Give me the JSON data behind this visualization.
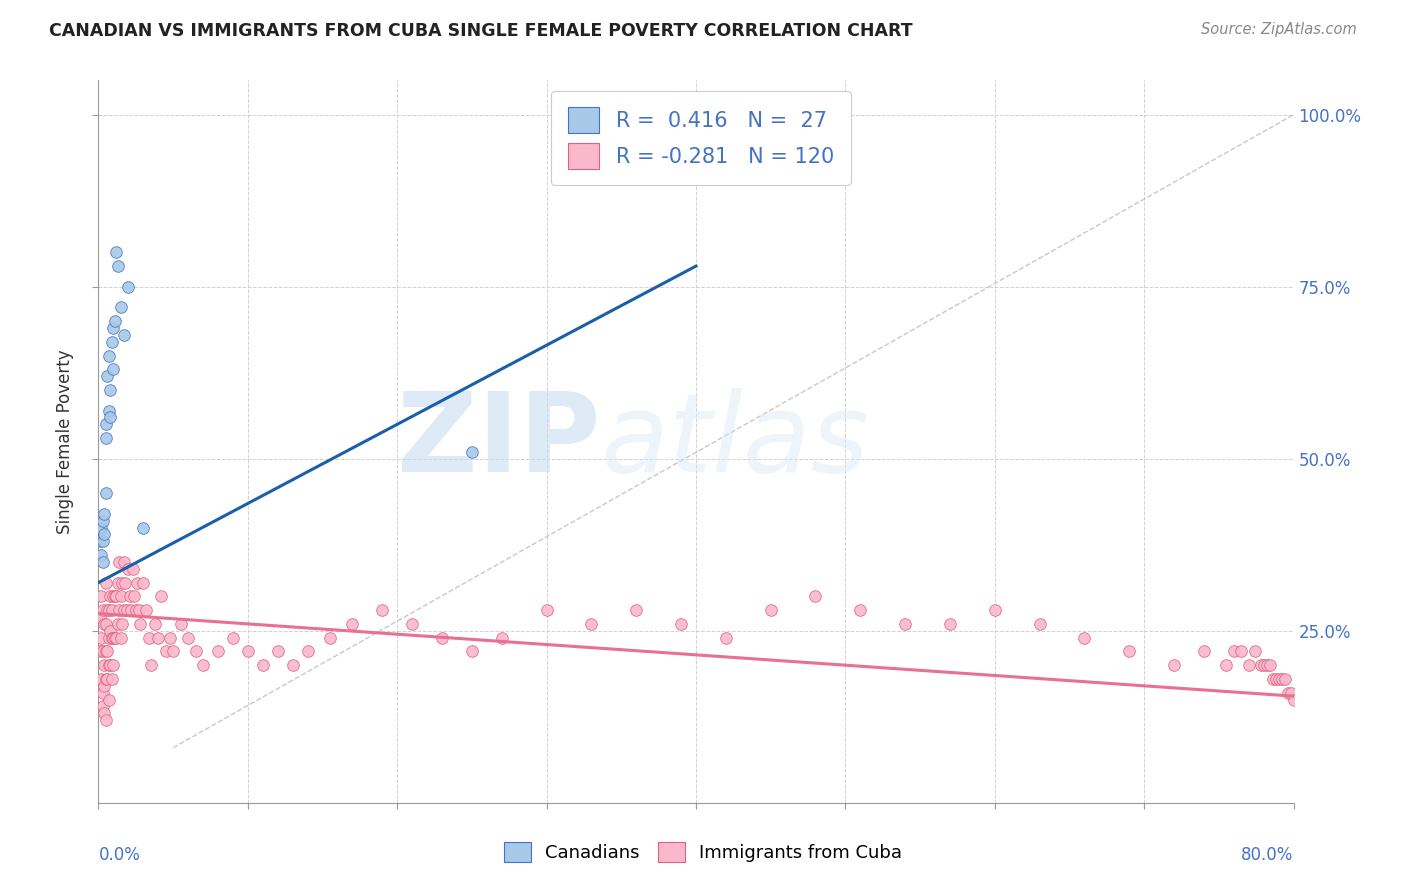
{
  "title": "CANADIAN VS IMMIGRANTS FROM CUBA SINGLE FEMALE POVERTY CORRELATION CHART",
  "source": "Source: ZipAtlas.com",
  "ylabel": "Single Female Poverty",
  "legend_box": {
    "R_canadian": "0.416",
    "N_canadian": "27",
    "R_cuba": "-0.281",
    "N_cuba": "120"
  },
  "watermark_zip": "ZIP",
  "watermark_atlas": "atlas",
  "canadian_fill": "#a8c8e8",
  "canadian_edge": "#4472c4",
  "cuba_fill": "#f9b8cc",
  "cuba_edge": "#e06080",
  "canadian_line_color": "#1a5fa8",
  "cuba_line_color": "#e87090",
  "diagonal_color": "#bbbbbb",
  "x_min": 0.0,
  "x_max": 0.8,
  "y_min": 0.0,
  "y_max": 1.05,
  "canadians_x": [
    0.001,
    0.002,
    0.002,
    0.003,
    0.003,
    0.003,
    0.004,
    0.004,
    0.005,
    0.005,
    0.005,
    0.006,
    0.007,
    0.007,
    0.008,
    0.008,
    0.009,
    0.01,
    0.01,
    0.011,
    0.012,
    0.013,
    0.015,
    0.017,
    0.02,
    0.03,
    0.25
  ],
  "canadians_y": [
    0.38,
    0.36,
    0.4,
    0.41,
    0.38,
    0.35,
    0.42,
    0.39,
    0.55,
    0.53,
    0.45,
    0.62,
    0.65,
    0.57,
    0.6,
    0.56,
    0.67,
    0.69,
    0.63,
    0.7,
    0.8,
    0.78,
    0.72,
    0.68,
    0.75,
    0.4,
    0.51
  ],
  "cuba_x": [
    0.001,
    0.001,
    0.002,
    0.002,
    0.002,
    0.003,
    0.003,
    0.003,
    0.003,
    0.004,
    0.004,
    0.004,
    0.004,
    0.005,
    0.005,
    0.005,
    0.005,
    0.005,
    0.006,
    0.006,
    0.006,
    0.007,
    0.007,
    0.007,
    0.007,
    0.008,
    0.008,
    0.008,
    0.009,
    0.009,
    0.009,
    0.01,
    0.01,
    0.01,
    0.011,
    0.011,
    0.012,
    0.012,
    0.013,
    0.013,
    0.014,
    0.014,
    0.015,
    0.015,
    0.016,
    0.016,
    0.017,
    0.017,
    0.018,
    0.019,
    0.02,
    0.021,
    0.022,
    0.023,
    0.024,
    0.025,
    0.026,
    0.027,
    0.028,
    0.03,
    0.032,
    0.034,
    0.035,
    0.038,
    0.04,
    0.042,
    0.045,
    0.048,
    0.05,
    0.055,
    0.06,
    0.065,
    0.07,
    0.08,
    0.09,
    0.1,
    0.11,
    0.12,
    0.13,
    0.14,
    0.155,
    0.17,
    0.19,
    0.21,
    0.23,
    0.25,
    0.27,
    0.3,
    0.33,
    0.36,
    0.39,
    0.42,
    0.45,
    0.48,
    0.51,
    0.54,
    0.57,
    0.6,
    0.63,
    0.66,
    0.69,
    0.72,
    0.74,
    0.755,
    0.76,
    0.765,
    0.77,
    0.774,
    0.778,
    0.78,
    0.782,
    0.784,
    0.786,
    0.788,
    0.79,
    0.792,
    0.794,
    0.796,
    0.798,
    0.8
  ],
  "cuba_y": [
    0.27,
    0.22,
    0.3,
    0.24,
    0.18,
    0.28,
    0.22,
    0.16,
    0.14,
    0.26,
    0.2,
    0.17,
    0.13,
    0.32,
    0.26,
    0.22,
    0.18,
    0.12,
    0.28,
    0.22,
    0.18,
    0.28,
    0.24,
    0.2,
    0.15,
    0.3,
    0.25,
    0.2,
    0.28,
    0.24,
    0.18,
    0.3,
    0.24,
    0.2,
    0.3,
    0.24,
    0.3,
    0.24,
    0.32,
    0.26,
    0.35,
    0.28,
    0.3,
    0.24,
    0.32,
    0.26,
    0.35,
    0.28,
    0.32,
    0.28,
    0.34,
    0.3,
    0.28,
    0.34,
    0.3,
    0.28,
    0.32,
    0.28,
    0.26,
    0.32,
    0.28,
    0.24,
    0.2,
    0.26,
    0.24,
    0.3,
    0.22,
    0.24,
    0.22,
    0.26,
    0.24,
    0.22,
    0.2,
    0.22,
    0.24,
    0.22,
    0.2,
    0.22,
    0.2,
    0.22,
    0.24,
    0.26,
    0.28,
    0.26,
    0.24,
    0.22,
    0.24,
    0.28,
    0.26,
    0.28,
    0.26,
    0.24,
    0.28,
    0.3,
    0.28,
    0.26,
    0.26,
    0.28,
    0.26,
    0.24,
    0.22,
    0.2,
    0.22,
    0.2,
    0.22,
    0.22,
    0.2,
    0.22,
    0.2,
    0.2,
    0.2,
    0.2,
    0.18,
    0.18,
    0.18,
    0.18,
    0.18,
    0.16,
    0.16,
    0.15
  ],
  "canadian_line_x": [
    0.0,
    0.4
  ],
  "canadian_line_y": [
    0.32,
    0.78
  ],
  "cuba_line_x": [
    0.0,
    0.8
  ],
  "cuba_line_y": [
    0.275,
    0.155
  ]
}
